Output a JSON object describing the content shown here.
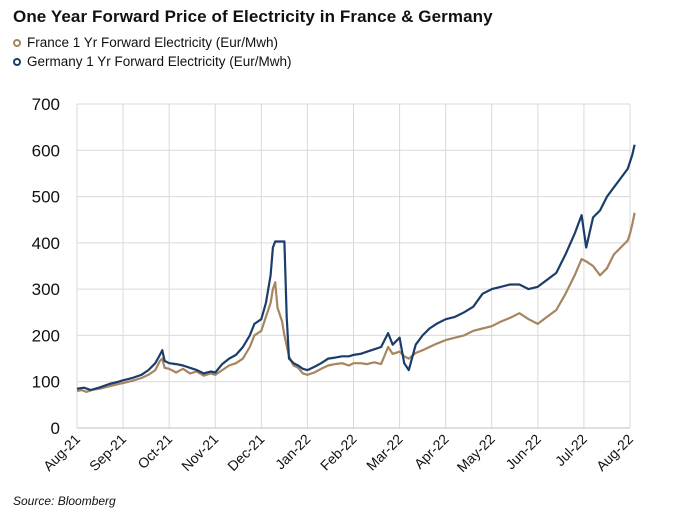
{
  "chart_data": {
    "type": "line",
    "title": "One Year Forward Price of Electricity in France & Germany",
    "source": "Source: Bloomberg",
    "xlabel": "",
    "ylabel": "",
    "ylim": [
      0,
      700
    ],
    "yticks": [
      0,
      100,
      200,
      300,
      400,
      500,
      600,
      700
    ],
    "categories": [
      "Aug-21",
      "Sep-21",
      "Oct-21",
      "Nov-21",
      "Dec-21",
      "Jan-22",
      "Feb-22",
      "Mar-22",
      "Apr-22",
      "May-22",
      "Jun-22",
      "Jul-22",
      "Aug-22"
    ],
    "grid": true,
    "legend_position": "top-left",
    "colors": {
      "france": "#a68560",
      "germany": "#1b3d6b",
      "grid": "#d9d9d9"
    },
    "series": [
      {
        "name": "France 1 Yr Forward Electricity (Eur/Mwh)",
        "points": [
          [
            0,
            80
          ],
          [
            0.1,
            82
          ],
          [
            0.2,
            78
          ],
          [
            0.35,
            83
          ],
          [
            0.5,
            85
          ],
          [
            0.7,
            90
          ],
          [
            0.9,
            95
          ],
          [
            1.0,
            97
          ],
          [
            1.2,
            102
          ],
          [
            1.4,
            108
          ],
          [
            1.55,
            115
          ],
          [
            1.7,
            125
          ],
          [
            1.8,
            145
          ],
          [
            1.85,
            150
          ],
          [
            1.9,
            130
          ],
          [
            2.0,
            128
          ],
          [
            2.15,
            120
          ],
          [
            2.3,
            128
          ],
          [
            2.45,
            118
          ],
          [
            2.6,
            122
          ],
          [
            2.75,
            113
          ],
          [
            2.9,
            118
          ],
          [
            3.0,
            115
          ],
          [
            3.15,
            125
          ],
          [
            3.3,
            135
          ],
          [
            3.45,
            140
          ],
          [
            3.6,
            150
          ],
          [
            3.75,
            175
          ],
          [
            3.85,
            200
          ],
          [
            4.0,
            210
          ],
          [
            4.1,
            240
          ],
          [
            4.2,
            270
          ],
          [
            4.25,
            300
          ],
          [
            4.3,
            315
          ],
          [
            4.35,
            260
          ],
          [
            4.45,
            230
          ],
          [
            4.5,
            200
          ],
          [
            4.6,
            155
          ],
          [
            4.7,
            135
          ],
          [
            4.8,
            130
          ],
          [
            4.9,
            118
          ],
          [
            5.0,
            115
          ],
          [
            5.15,
            120
          ],
          [
            5.3,
            128
          ],
          [
            5.45,
            135
          ],
          [
            5.6,
            138
          ],
          [
            5.75,
            140
          ],
          [
            5.9,
            135
          ],
          [
            6.0,
            140
          ],
          [
            6.15,
            140
          ],
          [
            6.3,
            138
          ],
          [
            6.45,
            142
          ],
          [
            6.6,
            138
          ],
          [
            6.75,
            175
          ],
          [
            6.85,
            160
          ],
          [
            7.0,
            165
          ],
          [
            7.1,
            155
          ],
          [
            7.2,
            150
          ],
          [
            7.35,
            162
          ],
          [
            7.5,
            168
          ],
          [
            7.65,
            175
          ],
          [
            7.8,
            182
          ],
          [
            8.0,
            190
          ],
          [
            8.2,
            195
          ],
          [
            8.4,
            200
          ],
          [
            8.6,
            210
          ],
          [
            8.8,
            215
          ],
          [
            9.0,
            220
          ],
          [
            9.2,
            230
          ],
          [
            9.4,
            238
          ],
          [
            9.6,
            248
          ],
          [
            9.8,
            235
          ],
          [
            10.0,
            225
          ],
          [
            10.2,
            240
          ],
          [
            10.4,
            255
          ],
          [
            10.6,
            290
          ],
          [
            10.8,
            330
          ],
          [
            10.95,
            365
          ],
          [
            11.05,
            360
          ],
          [
            11.2,
            350
          ],
          [
            11.35,
            330
          ],
          [
            11.5,
            345
          ],
          [
            11.65,
            375
          ],
          [
            11.8,
            390
          ],
          [
            11.95,
            405
          ],
          [
            12.0,
            420
          ],
          [
            12.05,
            440
          ],
          [
            12.1,
            465
          ]
        ]
      },
      {
        "name": "Germany 1 Yr Forward Electricity (Eur/Mwh)",
        "points": [
          [
            0,
            85
          ],
          [
            0.15,
            87
          ],
          [
            0.3,
            82
          ],
          [
            0.5,
            88
          ],
          [
            0.7,
            95
          ],
          [
            0.9,
            100
          ],
          [
            1.0,
            103
          ],
          [
            1.2,
            108
          ],
          [
            1.4,
            115
          ],
          [
            1.55,
            125
          ],
          [
            1.7,
            140
          ],
          [
            1.8,
            158
          ],
          [
            1.85,
            168
          ],
          [
            1.9,
            145
          ],
          [
            2.0,
            140
          ],
          [
            2.15,
            138
          ],
          [
            2.3,
            135
          ],
          [
            2.45,
            130
          ],
          [
            2.6,
            125
          ],
          [
            2.75,
            118
          ],
          [
            2.9,
            122
          ],
          [
            3.0,
            120
          ],
          [
            3.15,
            138
          ],
          [
            3.3,
            150
          ],
          [
            3.45,
            158
          ],
          [
            3.6,
            175
          ],
          [
            3.75,
            200
          ],
          [
            3.85,
            225
          ],
          [
            4.0,
            235
          ],
          [
            4.1,
            270
          ],
          [
            4.2,
            330
          ],
          [
            4.25,
            390
          ],
          [
            4.3,
            403
          ],
          [
            4.4,
            403
          ],
          [
            4.5,
            403
          ],
          [
            4.55,
            240
          ],
          [
            4.6,
            150
          ],
          [
            4.7,
            140
          ],
          [
            4.8,
            135
          ],
          [
            4.9,
            128
          ],
          [
            5.0,
            125
          ],
          [
            5.15,
            132
          ],
          [
            5.3,
            140
          ],
          [
            5.45,
            150
          ],
          [
            5.6,
            152
          ],
          [
            5.75,
            155
          ],
          [
            5.9,
            155
          ],
          [
            6.0,
            158
          ],
          [
            6.15,
            160
          ],
          [
            6.3,
            165
          ],
          [
            6.45,
            170
          ],
          [
            6.6,
            175
          ],
          [
            6.75,
            205
          ],
          [
            6.85,
            180
          ],
          [
            7.0,
            195
          ],
          [
            7.1,
            140
          ],
          [
            7.2,
            125
          ],
          [
            7.35,
            180
          ],
          [
            7.5,
            200
          ],
          [
            7.65,
            215
          ],
          [
            7.8,
            225
          ],
          [
            8.0,
            235
          ],
          [
            8.2,
            240
          ],
          [
            8.4,
            250
          ],
          [
            8.6,
            262
          ],
          [
            8.8,
            290
          ],
          [
            9.0,
            300
          ],
          [
            9.2,
            305
          ],
          [
            9.4,
            310
          ],
          [
            9.6,
            310
          ],
          [
            9.8,
            300
          ],
          [
            10.0,
            305
          ],
          [
            10.2,
            320
          ],
          [
            10.4,
            335
          ],
          [
            10.6,
            375
          ],
          [
            10.8,
            420
          ],
          [
            10.95,
            460
          ],
          [
            11.05,
            390
          ],
          [
            11.2,
            455
          ],
          [
            11.35,
            470
          ],
          [
            11.5,
            500
          ],
          [
            11.65,
            520
          ],
          [
            11.8,
            540
          ],
          [
            11.95,
            560
          ],
          [
            12.0,
            575
          ],
          [
            12.05,
            590
          ],
          [
            12.1,
            612
          ]
        ]
      }
    ]
  }
}
